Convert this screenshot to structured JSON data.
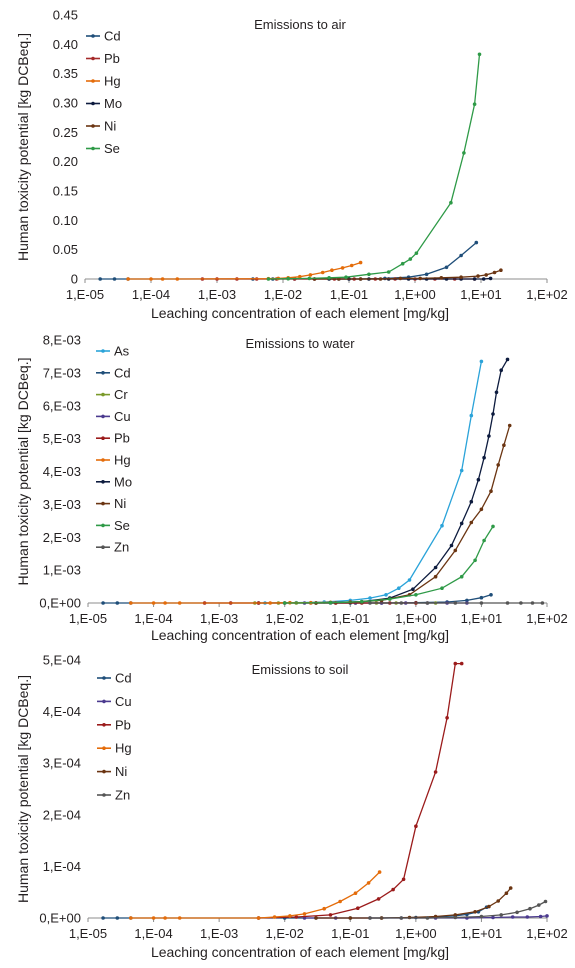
{
  "chart_data": [
    {
      "type": "line",
      "title": "Emissions to air",
      "xlabel": "Leaching concentration of each element [mg/kg]",
      "ylabel": "Human toxicity potential [kg DCBeq.]",
      "xscale": "log",
      "xlim": [
        1e-05,
        100
      ],
      "xticks": [
        "1,E-05",
        "1,E-04",
        "1,E-03",
        "1,E-02",
        "1,E-01",
        "1,E+00",
        "1,E+01",
        "1,E+02"
      ],
      "ylim": [
        0,
        0.45
      ],
      "yticks": [
        "0",
        "0.05",
        "0.10",
        "0.15",
        "0.20",
        "0.25",
        "0.30",
        "0.35",
        "0.40",
        "0.45"
      ],
      "legend_position": "top-left",
      "series": [
        {
          "name": "Cd",
          "color": "#1f4e79",
          "x": [
            1.7e-05,
            2.8e-05,
            4.5e-05,
            0.0035,
            0.007,
            0.015,
            0.03,
            0.07,
            0.15,
            0.35,
            0.8,
            1.5,
            3,
            5,
            8.5
          ],
          "y": [
            0,
            0,
            0,
            0,
            0,
            0,
            0,
            0,
            0,
            0.001,
            0.003,
            0.008,
            0.02,
            0.04,
            0.062
          ]
        },
        {
          "name": "Pb",
          "color": "#a52a2a",
          "x": [
            0.0006,
            0.001,
            0.002,
            0.004,
            0.008,
            0.015,
            0.03,
            0.06,
            0.12,
            0.25,
            0.5,
            1,
            2,
            4,
            8
          ],
          "y": [
            0,
            0,
            0,
            0,
            0,
            0,
            0,
            0,
            0,
            0,
            0,
            0,
            0,
            0,
            0
          ]
        },
        {
          "name": "Hg",
          "color": "#e46c0a",
          "x": [
            4.5e-05,
            0.0001,
            0.00015,
            0.00025,
            0.006,
            0.0085,
            0.012,
            0.018,
            0.026,
            0.04,
            0.055,
            0.08,
            0.11,
            0.15
          ],
          "y": [
            0,
            0,
            0,
            0,
            0.0005,
            0.001,
            0.002,
            0.004,
            0.007,
            0.011,
            0.015,
            0.019,
            0.023,
            0.028
          ]
        },
        {
          "name": "Mo",
          "color": "#0d1b3e",
          "x": [
            0.05,
            0.1,
            0.2,
            0.4,
            0.8,
            1.5,
            3,
            5,
            8,
            11,
            14
          ],
          "y": [
            0,
            0,
            0,
            0,
            0,
            0,
            0,
            0,
            0,
            0,
            0.001
          ]
        },
        {
          "name": "Ni",
          "color": "#6b3512",
          "x": [
            0.03,
            0.07,
            0.15,
            0.3,
            0.6,
            1.2,
            2.5,
            5,
            9,
            12,
            16,
            20
          ],
          "y": [
            0,
            0,
            0,
            0,
            0.001,
            0.001,
            0.002,
            0.003,
            0.005,
            0.007,
            0.011,
            0.015
          ]
        },
        {
          "name": "Se",
          "color": "#2e9a47",
          "x": [
            0.006,
            0.012,
            0.025,
            0.05,
            0.09,
            0.2,
            0.4,
            0.65,
            0.85,
            1.05,
            3.5,
            5.5,
            8,
            9.5
          ],
          "y": [
            0,
            0.0005,
            0.001,
            0.002,
            0.003,
            0.008,
            0.012,
            0.026,
            0.034,
            0.044,
            0.13,
            0.215,
            0.298,
            0.383
          ]
        }
      ]
    },
    {
      "type": "line",
      "title": "Emissions to water",
      "xlabel": "Leaching concentration of each element [mg/kg]",
      "ylabel": "Human toxicity potential [kg DCBeq.]",
      "xscale": "log",
      "xlim": [
        1e-05,
        100
      ],
      "xticks": [
        "1,E-05",
        "1,E-04",
        "1,E-03",
        "1,E-02",
        "1,E-01",
        "1,E+00",
        "1,E+01",
        "1,E+02"
      ],
      "ylim": [
        0,
        0.008
      ],
      "yticks": [
        "0,E+00",
        "1,E-03",
        "2,E-03",
        "3,E-03",
        "4,E-03",
        "5,E-03",
        "6,E-03",
        "7,E-03",
        "8,E-03"
      ],
      "legend_position": "top-left",
      "series": [
        {
          "name": "As",
          "color": "#2aa3d9",
          "x": [
            0.005,
            0.015,
            0.04,
            0.1,
            0.2,
            0.35,
            0.55,
            0.8,
            2.5,
            5,
            7,
            10
          ],
          "y": [
            0,
            1e-05,
            3e-05,
            8e-05,
            0.00015,
            0.00025,
            0.00045,
            0.0007,
            0.00235,
            0.00403,
            0.0057,
            0.00735
          ]
        },
        {
          "name": "Cd",
          "color": "#1f4e79",
          "x": [
            1.7e-05,
            2.8e-05,
            4.5e-05,
            0.004,
            0.01,
            0.03,
            0.1,
            0.3,
            1,
            3,
            6,
            10,
            14
          ],
          "y": [
            0,
            0,
            0,
            0,
            0,
            0,
            0,
            0,
            1e-05,
            3e-05,
            8e-05,
            0.00016,
            0.00025
          ]
        },
        {
          "name": "Cr",
          "color": "#7a9a2a",
          "x": [
            0.0035,
            0.008,
            0.015,
            0.03,
            0.06,
            0.12,
            0.25,
            0.5,
            1,
            2
          ],
          "y": [
            0,
            0,
            0,
            0,
            0,
            0,
            0,
            0,
            0,
            0
          ]
        },
        {
          "name": "Cu",
          "color": "#4b3a8f",
          "x": [
            0.02,
            0.05,
            0.12,
            0.3,
            0.7,
            1.5,
            3,
            6
          ],
          "y": [
            0,
            0,
            0,
            0,
            0,
            0,
            0,
            0
          ]
        },
        {
          "name": "Pb",
          "color": "#9b1b1b",
          "x": [
            0.0006,
            0.0015,
            0.004,
            0.01,
            0.025,
            0.06,
            0.15,
            0.4,
            1
          ],
          "y": [
            0,
            0,
            0,
            0,
            0,
            0,
            0,
            0,
            0
          ]
        },
        {
          "name": "Hg",
          "color": "#e46c0a",
          "x": [
            4.5e-05,
            0.0001,
            0.00015,
            0.00025,
            0.006,
            0.012,
            0.025,
            0.05,
            0.1
          ],
          "y": [
            0,
            0,
            0,
            0,
            0,
            1e-05,
            1e-05,
            2e-05,
            3e-05
          ]
        },
        {
          "name": "Mo",
          "color": "#0d1b3e",
          "x": [
            0.05,
            0.15,
            0.4,
            0.9,
            2,
            3.5,
            5,
            7,
            9,
            11,
            13,
            15,
            17,
            20,
            25
          ],
          "y": [
            1e-05,
            4e-05,
            0.00015,
            0.00042,
            0.00108,
            0.00175,
            0.00242,
            0.00308,
            0.00375,
            0.00442,
            0.00508,
            0.00575,
            0.00641,
            0.00708,
            0.00741
          ]
        },
        {
          "name": "Ni",
          "color": "#6b3512",
          "x": [
            0.03,
            0.1,
            0.3,
            0.8,
            2,
            4,
            7,
            10,
            14,
            18,
            22,
            27
          ],
          "y": [
            0,
            2e-05,
            8e-05,
            0.00025,
            0.0008,
            0.0016,
            0.00245,
            0.00285,
            0.0034,
            0.0042,
            0.0048,
            0.0054
          ]
        },
        {
          "name": "Se",
          "color": "#2e9a47",
          "x": [
            0.01,
            0.05,
            0.15,
            0.4,
            1,
            2.5,
            5,
            8,
            11,
            15
          ],
          "y": [
            0,
            1e-05,
            4e-05,
            0.00012,
            0.00025,
            0.00045,
            0.0008,
            0.0013,
            0.0019,
            0.00233
          ]
        },
        {
          "name": "Zn",
          "color": "#555555",
          "x": [
            0.2,
            0.6,
            1.5,
            4,
            10,
            25,
            40,
            60,
            85
          ],
          "y": [
            0,
            0,
            0,
            0,
            0,
            0,
            0,
            0,
            0
          ]
        }
      ]
    },
    {
      "type": "line",
      "title": "Emissions to soil",
      "xlabel": "Leaching concentration of each element [mg/kg]",
      "ylabel": "Human toxicity potential [kg DCBeq.]",
      "xscale": "log",
      "xlim": [
        1e-05,
        100
      ],
      "xticks": [
        "1,E-05",
        "1,E-04",
        "1,E-03",
        "1,E-02",
        "1,E-01",
        "1,E+00",
        "1,E+01",
        "1,E+02"
      ],
      "ylim": [
        0,
        0.0005
      ],
      "yticks": [
        "0,E+00",
        "1,E-04",
        "2,E-04",
        "3,E-04",
        "4,E-04",
        "5,E-04"
      ],
      "legend_position": "top-left",
      "series": [
        {
          "name": "Cd",
          "color": "#1f4e79",
          "x": [
            1.7e-05,
            2.8e-05,
            4.5e-05,
            0.004,
            0.01,
            0.03,
            0.1,
            0.3,
            1,
            2,
            4,
            6,
            9,
            12
          ],
          "y": [
            0,
            0,
            0,
            0,
            0,
            0,
            0,
            0,
            1e-06,
            2e-06,
            4e-06,
            7e-06,
            1.2e-05,
            2.1e-05
          ]
        },
        {
          "name": "Cu",
          "color": "#4b3a8f",
          "x": [
            0.02,
            0.06,
            0.2,
            0.6,
            2,
            6,
            15,
            30,
            50,
            80,
            100
          ],
          "y": [
            0,
            0,
            0,
            0,
            0,
            0,
            1e-06,
            2e-06,
            2e-06,
            3e-06,
            4e-06
          ]
        },
        {
          "name": "Pb",
          "color": "#9b1b1b",
          "x": [
            0.004,
            0.015,
            0.05,
            0.13,
            0.27,
            0.45,
            0.65,
            1,
            2,
            3,
            4,
            5
          ],
          "y": [
            0,
            2e-06,
            6e-06,
            1.9e-05,
            3.7e-05,
            5.5e-05,
            7.5e-05,
            0.000178,
            0.000283,
            0.000388,
            0.000493,
            0.000493
          ]
        },
        {
          "name": "Hg",
          "color": "#e46c0a",
          "x": [
            4.5e-05,
            0.0001,
            0.00015,
            0.00025,
            0.004,
            0.007,
            0.012,
            0.02,
            0.04,
            0.07,
            0.12,
            0.19,
            0.28
          ],
          "y": [
            0,
            0,
            0,
            0,
            0,
            2e-06,
            4e-06,
            8e-06,
            1.8e-05,
            3.2e-05,
            4.8e-05,
            6.8e-05,
            8.9e-05
          ]
        },
        {
          "name": "Ni",
          "color": "#6b3512",
          "x": [
            0.03,
            0.1,
            0.3,
            0.8,
            2,
            4,
            8,
            13,
            18,
            24,
            28
          ],
          "y": [
            0,
            0,
            0,
            1e-06,
            3e-06,
            6e-06,
            1.2e-05,
            2.2e-05,
            3.3e-05,
            4.8e-05,
            5.8e-05
          ]
        },
        {
          "name": "Zn",
          "color": "#555555",
          "x": [
            0.2,
            0.6,
            1.5,
            4,
            10,
            20,
            35,
            55,
            75,
            95
          ],
          "y": [
            0,
            0,
            0,
            1e-06,
            3e-06,
            6e-06,
            1.1e-05,
            1.8e-05,
            2.5e-05,
            3.2e-05
          ]
        }
      ]
    }
  ]
}
